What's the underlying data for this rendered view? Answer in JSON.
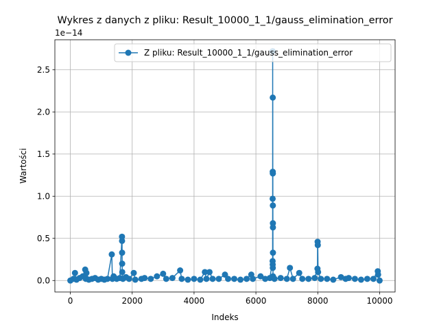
{
  "chart_data": {
    "type": "line",
    "title": "Wykres z danych z pliku: Result_10000_1_1/gauss_elimination_error",
    "xlabel": "Indeks",
    "ylabel": "Wartości",
    "y_offset_label": "1e−14",
    "legend": "upper right",
    "grid": true,
    "xlim": [
      -500,
      10500
    ],
    "xticks": [
      0,
      2000,
      4000,
      6000,
      8000,
      10000
    ],
    "ylim": [
      -0.136,
      2.856
    ],
    "yticks": [
      {
        "value": 0,
        "label": "0.0"
      },
      0.5,
      {
        "value": 1,
        "label": "1.0"
      },
      1.5,
      {
        "value": 2,
        "label": "2.0"
      },
      2.5
    ],
    "series": [
      {
        "name": "Z pliku: Result_10000_1_1/gauss_elimination_error",
        "color": "#1f77b4",
        "x": [
          0,
          100,
          150,
          200,
          300,
          400,
          480,
          500,
          520,
          600,
          700,
          800,
          900,
          1000,
          1100,
          1200,
          1340,
          1360,
          1400,
          1500,
          1600,
          1670,
          1672,
          1674,
          1676,
          1678,
          1700,
          1800,
          1900,
          2050,
          2100,
          2300,
          2400,
          2600,
          2800,
          3000,
          3100,
          3300,
          3550,
          3600,
          3800,
          4000,
          4200,
          4350,
          4400,
          4500,
          4600,
          4800,
          5000,
          5100,
          5300,
          5500,
          5700,
          5850,
          5900,
          6150,
          6300,
          6450,
          6540,
          6541,
          6542,
          6543,
          6544,
          6545,
          6546,
          6547,
          6548,
          6549,
          6550,
          6551,
          6552,
          6600,
          6800,
          7000,
          7100,
          7200,
          7400,
          7500,
          7700,
          7900,
          7990,
          7995,
          8000,
          8010,
          8100,
          8300,
          8500,
          8750,
          8900,
          9000,
          9200,
          9400,
          9600,
          9800,
          9940,
          9950,
          9999
        ],
        "values": [
          0,
          0.02,
          0.09,
          0.01,
          0.03,
          0.05,
          0.13,
          0.02,
          0.09,
          0.01,
          0.02,
          0.03,
          0.01,
          0.02,
          0.01,
          0.02,
          0.31,
          0.02,
          0.05,
          0.02,
          0.03,
          0.52,
          0.47,
          0.33,
          0.2,
          0.1,
          0.02,
          0.04,
          0.02,
          0.09,
          0.01,
          0.02,
          0.03,
          0.02,
          0.05,
          0.08,
          0.02,
          0.03,
          0.12,
          0.02,
          0.01,
          0.02,
          0.01,
          0.1,
          0.02,
          0.1,
          0.02,
          0.02,
          0.07,
          0.02,
          0.02,
          0.01,
          0.02,
          0.07,
          0.02,
          0.05,
          0.02,
          0.03,
          0.23,
          0.97,
          2.72,
          0.19,
          1.29,
          2.17,
          0.15,
          1.27,
          0.89,
          0.68,
          0.63,
          0.33,
          0.05,
          0.02,
          0.03,
          0.02,
          0.15,
          0.02,
          0.09,
          0.02,
          0.02,
          0.03,
          0.14,
          0.46,
          0.42,
          0.1,
          0.02,
          0.02,
          0.01,
          0.04,
          0.02,
          0.03,
          0.02,
          0.01,
          0.02,
          0.02,
          0.11,
          0.07,
          0
        ]
      }
    ]
  }
}
